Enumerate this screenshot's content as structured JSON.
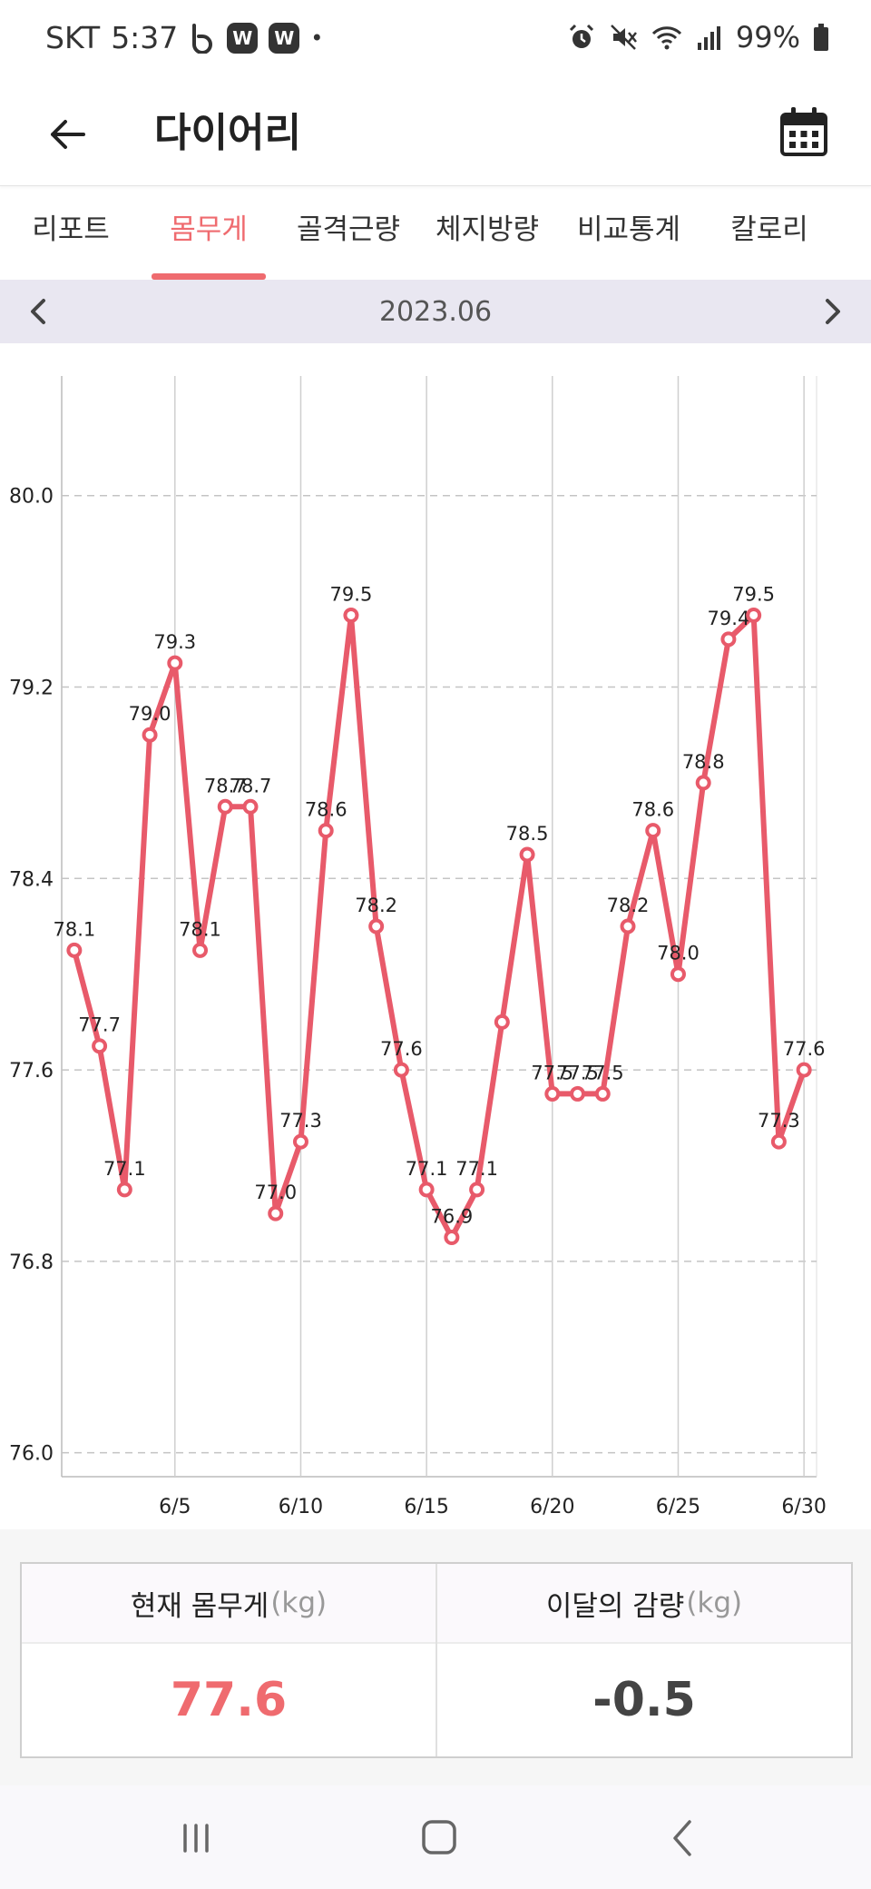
{
  "status": {
    "carrier": "SKT",
    "time": "5:37",
    "notif_icons": [
      "b-app-icon",
      "w-app-icon",
      "w-app-icon"
    ],
    "w_letter": "W",
    "dot": "•",
    "battery": "99%",
    "icons": [
      "alarm-icon",
      "mute-icon",
      "wifi-icon",
      "signal-icon",
      "battery-icon"
    ]
  },
  "header": {
    "title": "다이어리"
  },
  "tabs": [
    {
      "label": "리포트"
    },
    {
      "label": "몸무게"
    },
    {
      "label": "골격근량"
    },
    {
      "label": "체지방량"
    },
    {
      "label": "비교통계"
    },
    {
      "label": "칼로리"
    }
  ],
  "active_tab": 1,
  "month": "2023.06",
  "colors": {
    "accent": "#ef6b6f",
    "line": "#e85a6a",
    "month_bar": "#e9e7f1"
  },
  "chart_data": {
    "type": "line",
    "x": [
      1,
      2,
      3,
      4,
      5,
      6,
      7,
      8,
      9,
      10,
      11,
      12,
      13,
      14,
      15,
      16,
      17,
      18,
      19,
      20,
      21,
      22,
      23,
      24,
      25,
      26,
      27,
      28,
      29,
      30
    ],
    "values": [
      78.1,
      77.7,
      77.1,
      79.0,
      79.3,
      78.1,
      78.7,
      78.7,
      77.0,
      77.3,
      78.6,
      79.5,
      78.2,
      77.6,
      77.1,
      76.9,
      77.1,
      77.8,
      78.5,
      77.5,
      77.5,
      77.5,
      78.2,
      78.6,
      78.0,
      78.8,
      79.4,
      79.5,
      77.3,
      77.6
    ],
    "data_labels": [
      "78.1",
      "77.7",
      "77.1",
      "79.0",
      "79.3",
      "78.1",
      "78.7",
      "78.7",
      "77.0",
      "77.3",
      "78.6",
      "79.5",
      "78.2",
      "77.6",
      "77.1",
      "76.9",
      "77.1",
      "",
      "78.5",
      "77.5",
      "77.5",
      "77.5",
      "78.2",
      "78.6",
      "78.0",
      "78.8",
      "79.4",
      "79.5",
      "77.3",
      "77.6"
    ],
    "x_ticks": [
      5,
      10,
      15,
      20,
      25,
      30
    ],
    "x_tick_labels": [
      "6/5",
      "6/10",
      "6/15",
      "6/20",
      "6/25",
      "6/30"
    ],
    "y_ticks": [
      76.0,
      76.8,
      77.6,
      78.4,
      79.2,
      80.0
    ],
    "y_tick_labels": [
      "76.0",
      "76.8",
      "77.6",
      "78.4",
      "79.2",
      "80.0"
    ],
    "ylim": [
      75.9,
      80.5
    ],
    "xlim": [
      0.5,
      30.5
    ],
    "grid": true,
    "legend": "none"
  },
  "summary": {
    "current_label": "현재 몸무게",
    "current_unit": "(kg)",
    "current_value": "77.6",
    "change_label": "이달의 감량",
    "change_unit": "(kg)",
    "change_value": "-0.5"
  }
}
